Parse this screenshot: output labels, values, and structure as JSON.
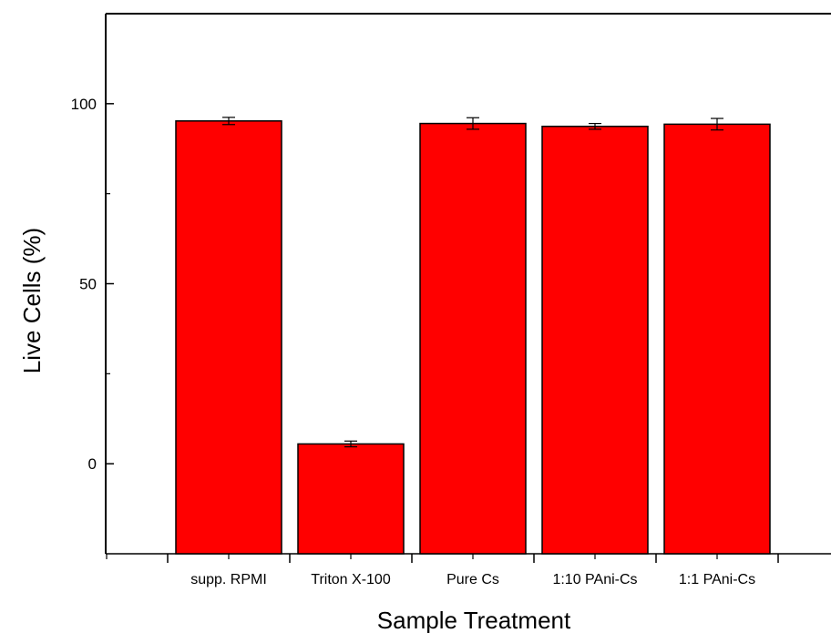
{
  "chart_data": {
    "type": "bar",
    "title": "",
    "xlabel": "Sample Treatment",
    "ylabel": "Live Cells (%)",
    "categories": [
      "supp. RPMI",
      "Triton X-100",
      "Pure Cs",
      "1:10 PAni-Cs",
      "1:1 PAni-Cs"
    ],
    "values": [
      95.2,
      5.5,
      94.5,
      93.7,
      94.3
    ],
    "errors": [
      1.0,
      0.8,
      1.6,
      0.8,
      1.6
    ],
    "ylim": [
      -25,
      125
    ],
    "yticks": [
      0,
      50,
      100
    ],
    "grid": false,
    "legend": "none",
    "bar_color": "#ff0000",
    "edge_color": "#000000"
  }
}
